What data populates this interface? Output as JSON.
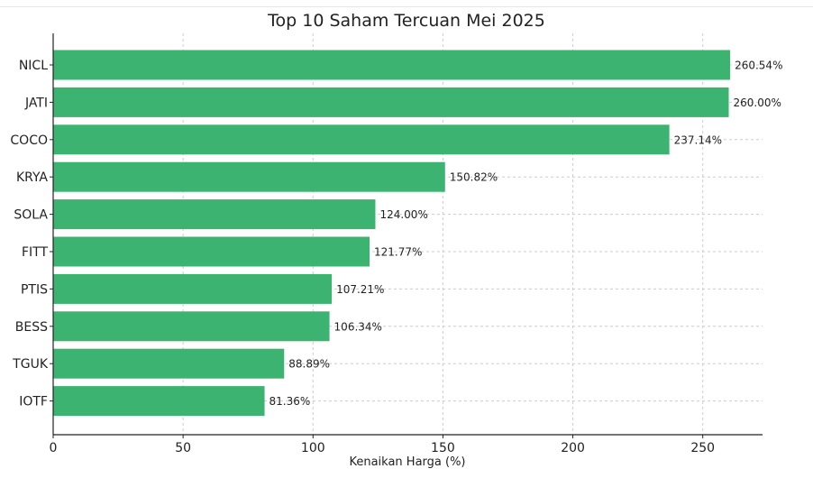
{
  "chart_data": {
    "type": "bar",
    "orientation": "horizontal",
    "title": "Top 10 Saham Tercuan Mei 2025",
    "xlabel": "Kenaikan Harga (%)",
    "ylabel": "",
    "categories": [
      "NICL",
      "JATI",
      "COCO",
      "KRYA",
      "SOLA",
      "FITT",
      "PTIS",
      "BESS",
      "TGUK",
      "IOTF"
    ],
    "values": [
      260.54,
      260.0,
      237.14,
      150.82,
      124.0,
      121.77,
      107.21,
      106.34,
      88.89,
      81.36
    ],
    "data_labels": [
      "260.54%",
      "260.00%",
      "237.14%",
      "150.82%",
      "124.00%",
      "121.77%",
      "107.21%",
      "106.34%",
      "88.89%",
      "81.36%"
    ],
    "xlim": [
      0,
      273
    ],
    "xticks": [
      0,
      50,
      100,
      150,
      200,
      250
    ],
    "grid": true,
    "bar_color": "#3cb371"
  }
}
